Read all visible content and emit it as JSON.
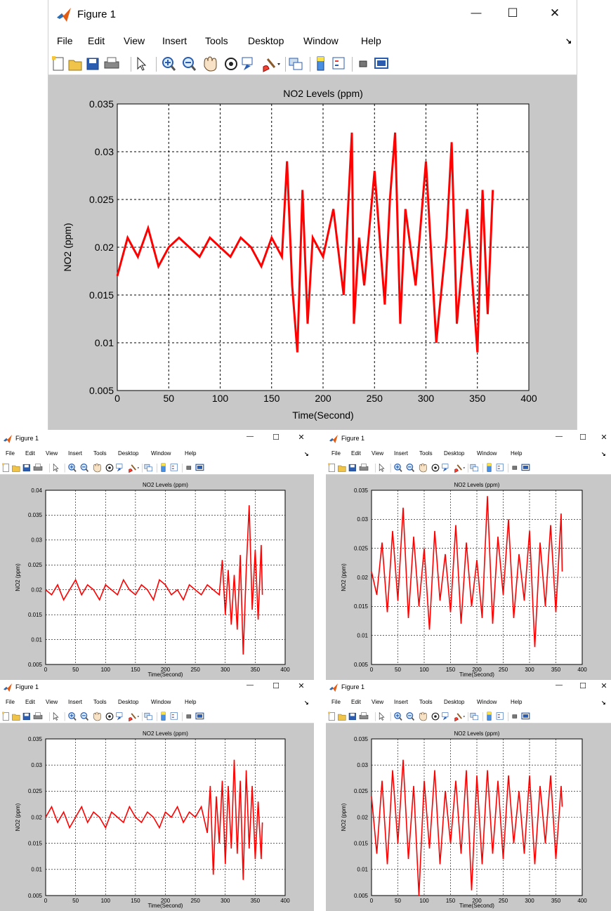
{
  "colors": {
    "trace": "#ff0000",
    "figure_bg": "#c8c8c8",
    "axes_bg": "#ffffff",
    "grid": "#000000"
  },
  "window_controls": {
    "minimize": "—",
    "maximize": "☐",
    "close": "✕"
  },
  "icons": {
    "app": "matlab-logo-icon",
    "toolbar": [
      "new-figure-icon",
      "open-file-icon",
      "save-icon",
      "print-icon",
      "pointer-arrow-icon",
      "zoom-in-icon",
      "zoom-out-icon",
      "pan-hand-icon",
      "rotate-3d-icon",
      "data-cursor-icon",
      "brush-icon",
      "brush-dropdown-icon",
      "link-plot-icon",
      "colorbar-icon",
      "legend-icon",
      "hide-plot-tools-icon",
      "show-plot-tools-icon"
    ],
    "dock": "dock-arrow-icon"
  },
  "menu": [
    "File",
    "Edit",
    "View",
    "Insert",
    "Tools",
    "Desktop",
    "Window",
    "Help"
  ],
  "windows": [
    {
      "title": "Figure 1",
      "chart_data": {
        "type": "line",
        "title": "NO2 Levels (ppm)",
        "xlabel": "Time(Second)",
        "ylabel": "NO2 (ppm)",
        "xlim": [
          0,
          400
        ],
        "ylim": [
          0.005,
          0.035
        ],
        "xticks": [
          "0",
          "50",
          "100",
          "150",
          "200",
          "250",
          "300",
          "350",
          "400"
        ],
        "yticks": [
          "0.005",
          "0.01",
          "0.015",
          "0.02",
          "0.025",
          "0.03",
          "0.035"
        ],
        "grid": true,
        "series": [
          {
            "color": "#ff0000",
            "x": [
              0,
              10,
              20,
              30,
              40,
              50,
              60,
              70,
              80,
              90,
              100,
              110,
              120,
              130,
              140,
              150,
              160,
              165,
              170,
              175,
              180,
              185,
              190,
              200,
              210,
              220,
              228,
              230,
              235,
              240,
              250,
              260,
              265,
              270,
              275,
              280,
              290,
              300,
              310,
              320,
              325,
              330,
              340,
              350,
              355,
              360,
              365
            ],
            "y": [
              0.017,
              0.021,
              0.019,
              0.022,
              0.018,
              0.02,
              0.021,
              0.02,
              0.019,
              0.021,
              0.02,
              0.019,
              0.021,
              0.02,
              0.018,
              0.021,
              0.019,
              0.029,
              0.016,
              0.009,
              0.026,
              0.012,
              0.021,
              0.019,
              0.024,
              0.015,
              0.032,
              0.012,
              0.021,
              0.016,
              0.028,
              0.014,
              0.025,
              0.032,
              0.012,
              0.024,
              0.016,
              0.029,
              0.01,
              0.021,
              0.031,
              0.012,
              0.024,
              0.009,
              0.026,
              0.013,
              0.026
            ]
          }
        ]
      }
    },
    {
      "title": "Figure 1",
      "chart_data": {
        "type": "line",
        "title": "NO2 Levels (ppm)",
        "xlabel": "Time(Second)",
        "ylabel": "NO2 (ppm)",
        "xlim": [
          0,
          400
        ],
        "ylim": [
          0.005,
          0.04
        ],
        "xticks": [
          "0",
          "50",
          "100",
          "150",
          "200",
          "250",
          "300",
          "350",
          "400"
        ],
        "yticks": [
          "0.005",
          "0.01",
          "0.015",
          "0.02",
          "0.025",
          "0.03",
          "0.035",
          "0.04"
        ],
        "grid": true,
        "series": [
          {
            "color": "#ff0000",
            "x": [
              0,
              10,
              20,
              30,
              40,
              50,
              60,
              70,
              80,
              90,
              100,
              110,
              120,
              130,
              140,
              150,
              160,
              170,
              180,
              190,
              200,
              210,
              220,
              230,
              240,
              250,
              260,
              270,
              280,
              290,
              295,
              300,
              305,
              310,
              315,
              320,
              325,
              330,
              335,
              340,
              345,
              350,
              355,
              360,
              362
            ],
            "y": [
              0.02,
              0.019,
              0.021,
              0.018,
              0.02,
              0.022,
              0.019,
              0.021,
              0.02,
              0.018,
              0.021,
              0.02,
              0.019,
              0.022,
              0.02,
              0.019,
              0.021,
              0.02,
              0.018,
              0.022,
              0.021,
              0.019,
              0.02,
              0.018,
              0.021,
              0.02,
              0.019,
              0.021,
              0.02,
              0.019,
              0.026,
              0.015,
              0.024,
              0.013,
              0.023,
              0.012,
              0.027,
              0.007,
              0.024,
              0.037,
              0.016,
              0.028,
              0.014,
              0.029,
              0.019
            ]
          }
        ]
      }
    },
    {
      "title": "Figure 1",
      "chart_data": {
        "type": "line",
        "title": "NO2 Levels (ppm)",
        "xlabel": "Time(Second)",
        "ylabel": "NO2 (ppm)",
        "xlim": [
          0,
          400
        ],
        "ylim": [
          0.005,
          0.035
        ],
        "xticks": [
          "0",
          "50",
          "100",
          "150",
          "200",
          "250",
          "300",
          "350",
          "400"
        ],
        "yticks": [
          "0.005",
          "0.01",
          "0.015",
          "0.02",
          "0.025",
          "0.03",
          "0.035"
        ],
        "grid": true,
        "series": [
          {
            "color": "#ff0000",
            "x": [
              0,
              10,
              20,
              30,
              40,
              50,
              60,
              70,
              80,
              90,
              100,
              110,
              120,
              130,
              140,
              150,
              160,
              170,
              180,
              190,
              200,
              210,
              220,
              230,
              240,
              250,
              260,
              270,
              280,
              290,
              300,
              310,
              320,
              330,
              340,
              350,
              360,
              362
            ],
            "y": [
              0.021,
              0.017,
              0.026,
              0.014,
              0.028,
              0.016,
              0.032,
              0.013,
              0.027,
              0.015,
              0.025,
              0.011,
              0.028,
              0.016,
              0.024,
              0.014,
              0.029,
              0.012,
              0.026,
              0.015,
              0.023,
              0.013,
              0.034,
              0.012,
              0.027,
              0.017,
              0.03,
              0.013,
              0.024,
              0.016,
              0.028,
              0.008,
              0.026,
              0.015,
              0.029,
              0.014,
              0.031,
              0.021
            ]
          }
        ]
      }
    },
    {
      "title": "Figure 1",
      "chart_data": {
        "type": "line",
        "title": "NO2 Levels (ppm)",
        "xlabel": "Time(Second)",
        "ylabel": "NO2 (ppm)",
        "xlim": [
          0,
          400
        ],
        "ylim": [
          0.005,
          0.035
        ],
        "xticks": [
          "0",
          "50",
          "100",
          "150",
          "200",
          "250",
          "300",
          "350",
          "400"
        ],
        "yticks": [
          "0.005",
          "0.01",
          "0.015",
          "0.02",
          "0.025",
          "0.03",
          "0.035"
        ],
        "grid": true,
        "series": [
          {
            "color": "#ff0000",
            "x": [
              0,
              10,
              20,
              30,
              40,
              50,
              60,
              70,
              80,
              90,
              100,
              110,
              120,
              130,
              140,
              150,
              160,
              170,
              180,
              190,
              200,
              210,
              220,
              230,
              240,
              250,
              260,
              270,
              275,
              280,
              285,
              290,
              295,
              300,
              305,
              310,
              315,
              320,
              325,
              330,
              335,
              340,
              345,
              350,
              355,
              360,
              362
            ],
            "y": [
              0.02,
              0.022,
              0.019,
              0.021,
              0.018,
              0.02,
              0.022,
              0.019,
              0.021,
              0.02,
              0.018,
              0.021,
              0.02,
              0.019,
              0.022,
              0.02,
              0.019,
              0.021,
              0.02,
              0.018,
              0.021,
              0.02,
              0.022,
              0.019,
              0.021,
              0.02,
              0.022,
              0.017,
              0.026,
              0.009,
              0.024,
              0.015,
              0.027,
              0.011,
              0.026,
              0.014,
              0.031,
              0.013,
              0.027,
              0.008,
              0.029,
              0.014,
              0.026,
              0.012,
              0.023,
              0.012,
              0.019
            ]
          }
        ]
      }
    },
    {
      "title": "Figure 1",
      "chart_data": {
        "type": "line",
        "title": "NO2 Levels (ppm)",
        "xlabel": "Time(Second)",
        "ylabel": "NO2 (ppm)",
        "xlim": [
          0,
          400
        ],
        "ylim": [
          0.005,
          0.035
        ],
        "xticks": [
          "0",
          "50",
          "100",
          "150",
          "200",
          "250",
          "300",
          "350",
          "400"
        ],
        "yticks": [
          "0.005",
          "0.01",
          "0.015",
          "0.02",
          "0.025",
          "0.03",
          "0.035"
        ],
        "grid": true,
        "series": [
          {
            "color": "#ff0000",
            "x": [
              0,
              10,
              20,
              30,
              40,
              50,
              60,
              70,
              80,
              90,
              100,
              110,
              120,
              130,
              140,
              150,
              160,
              170,
              180,
              190,
              200,
              210,
              220,
              230,
              240,
              250,
              260,
              270,
              280,
              290,
              300,
              310,
              320,
              330,
              340,
              350,
              360,
              362
            ],
            "y": [
              0.024,
              0.013,
              0.027,
              0.011,
              0.029,
              0.015,
              0.031,
              0.012,
              0.026,
              0.005,
              0.027,
              0.014,
              0.029,
              0.011,
              0.025,
              0.015,
              0.027,
              0.013,
              0.029,
              0.006,
              0.028,
              0.011,
              0.029,
              0.013,
              0.027,
              0.012,
              0.028,
              0.015,
              0.025,
              0.013,
              0.028,
              0.011,
              0.026,
              0.015,
              0.028,
              0.012,
              0.026,
              0.022
            ]
          }
        ]
      }
    }
  ]
}
